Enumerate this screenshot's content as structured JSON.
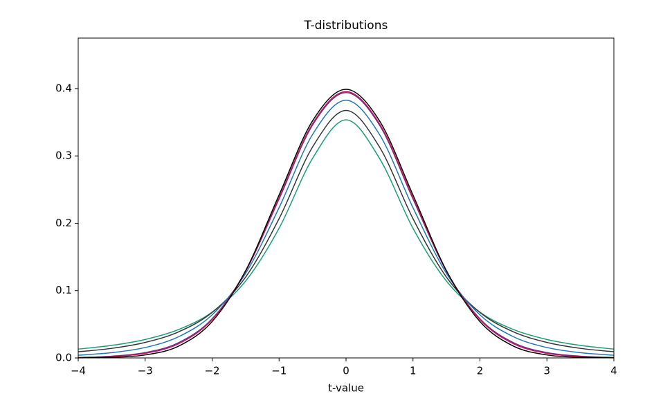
{
  "chart_data": {
    "type": "line",
    "title": "T-distributions",
    "x_label": "t-value",
    "x": [
      -4,
      -3.5,
      -3,
      -2.5,
      -2,
      -1.5,
      -1,
      -0.5,
      0,
      0.5,
      1,
      1.5,
      2,
      2.5,
      3,
      3.5,
      4
    ],
    "series": [
      {
        "color": "#1a9e77",
        "values": [
          0.0131,
          0.0186,
          0.0274,
          0.0422,
          0.068,
          0.1141,
          0.1925,
          0.2963,
          0.3536,
          0.2963,
          0.1925,
          0.1141,
          0.068,
          0.0422,
          0.0274,
          0.0186,
          0.0131
        ]
      },
      {
        "color": "#333333",
        "values": [
          0.00917,
          0.0142,
          0.023,
          0.0387,
          0.0675,
          0.12,
          0.2068,
          0.3132,
          0.3676,
          0.3132,
          0.2068,
          0.12,
          0.0675,
          0.0387,
          0.023,
          0.0142,
          0.00917
        ]
      },
      {
        "color": "#1f77b4",
        "values": [
          0.00405,
          0.0078,
          0.01549,
          0.0315,
          0.064,
          0.1255,
          0.2231,
          0.3318,
          0.3827,
          0.3318,
          0.2231,
          0.1255,
          0.064,
          0.0315,
          0.01549,
          0.0078,
          0.00405
        ]
      },
      {
        "color": "#6a2c8c",
        "values": [
          0.00082,
          0.00261,
          0.00797,
          0.0227,
          0.0581,
          0.1287,
          0.236,
          0.3458,
          0.394,
          0.3458,
          0.236,
          0.1287,
          0.0581,
          0.0227,
          0.00797,
          0.00261,
          0.00082
        ]
      },
      {
        "color": "#c2185b",
        "values": [
          0.00052,
          0.00196,
          0.00678,
          0.0211,
          0.0569,
          0.129,
          0.2379,
          0.3478,
          0.3956,
          0.3478,
          0.2379,
          0.129,
          0.0569,
          0.0211,
          0.00678,
          0.00196,
          0.00052
        ]
      },
      {
        "color": "#000000",
        "values": [
          0.00013,
          0.00087,
          0.00443,
          0.0175,
          0.054,
          0.1295,
          0.242,
          0.3521,
          0.3989,
          0.3521,
          0.242,
          0.1295,
          0.054,
          0.0175,
          0.00443,
          0.00087,
          0.00013
        ]
      }
    ],
    "xlim": [
      -4,
      4
    ],
    "ylim": [
      0,
      0.475
    ],
    "xticks": [
      {
        "value": -4,
        "label": "−4"
      },
      {
        "value": -3,
        "label": "−3"
      },
      {
        "value": -2,
        "label": "−2"
      },
      {
        "value": -1,
        "label": "−1"
      },
      0,
      1,
      2,
      3,
      4
    ],
    "yticks": [
      {
        "value": 0,
        "label": "0.0"
      },
      0.1,
      0.2,
      0.3,
      0.4
    ]
  }
}
